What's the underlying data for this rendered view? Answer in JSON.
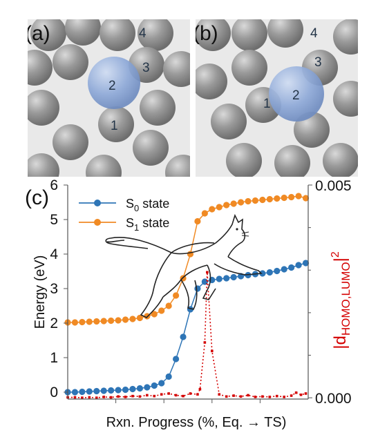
{
  "panels": {
    "a": {
      "label": "(a)",
      "atoms": [
        "1",
        "2",
        "3",
        "4"
      ]
    },
    "b": {
      "label": "(b)",
      "atoms": [
        "1",
        "2",
        "3",
        "4"
      ]
    },
    "c": {
      "label": "(c)"
    }
  },
  "colors": {
    "s0": "#2e75b6",
    "s1": "#f08a24",
    "overlap": "#d40000",
    "adsorbate": "#8ea9d8",
    "metal": "#8a8a8a"
  },
  "chart_data": {
    "type": "line",
    "xlabel": "Rxn. Progress (%, Eq. → TS)",
    "ylabel": "Energy (eV)",
    "y2label": "|d_HOMO,LUMO|^2",
    "y2label_main": "|d",
    "y2label_sub": "HOMO,LUMO",
    "y2label_end": "|",
    "y2label_sup": "2",
    "ylim": [
      -0.2,
      6
    ],
    "y2lim": [
      -3e-05,
      0.005
    ],
    "yticks": [
      "0",
      "1",
      "2",
      "3",
      "4",
      "5",
      "6"
    ],
    "y2ticks": [
      "0.000",
      "0.005"
    ],
    "xlim": [
      0,
      100
    ],
    "legend": {
      "placement": "top-left"
    },
    "series": [
      {
        "name": "S0 state",
        "name_main": "S",
        "name_sub": "0",
        "name_rest": " state",
        "axis": "left",
        "x": [
          0,
          3,
          6,
          9,
          12,
          15,
          18,
          21,
          24,
          27,
          30,
          33,
          36,
          39,
          42,
          45,
          48,
          51,
          54,
          57,
          60,
          63,
          66,
          69,
          72,
          75,
          78,
          81,
          84,
          87,
          90,
          93,
          96,
          99
        ],
        "values": [
          0.0,
          0.0,
          0.01,
          0.02,
          0.03,
          0.04,
          0.05,
          0.06,
          0.07,
          0.09,
          0.11,
          0.14,
          0.19,
          0.26,
          0.45,
          0.96,
          1.6,
          2.4,
          3.0,
          3.2,
          3.25,
          3.28,
          3.3,
          3.33,
          3.36,
          3.39,
          3.42,
          3.44,
          3.47,
          3.51,
          3.56,
          3.61,
          3.68,
          3.74
        ]
      },
      {
        "name": "S1 state",
        "name_main": "S",
        "name_sub": "1",
        "name_rest": " state",
        "axis": "left",
        "x": [
          0,
          3,
          6,
          9,
          12,
          15,
          18,
          21,
          24,
          27,
          30,
          33,
          36,
          39,
          42,
          45,
          48,
          51,
          54,
          57,
          60,
          63,
          66,
          69,
          72,
          75,
          78,
          81,
          84,
          87,
          90,
          93,
          96,
          99
        ],
        "values": [
          2.02,
          2.02,
          2.03,
          2.04,
          2.05,
          2.06,
          2.07,
          2.08,
          2.1,
          2.12,
          2.15,
          2.2,
          2.26,
          2.36,
          2.5,
          2.8,
          3.3,
          4.0,
          4.95,
          5.18,
          5.3,
          5.36,
          5.42,
          5.46,
          5.5,
          5.53,
          5.55,
          5.57,
          5.59,
          5.61,
          5.63,
          5.65,
          5.68,
          5.62
        ]
      },
      {
        "name": "|d_HOMO,LUMO|^2",
        "axis": "right",
        "x": [
          0,
          3,
          6,
          9,
          12,
          15,
          18,
          21,
          24,
          27,
          30,
          33,
          36,
          39,
          42,
          45,
          48,
          51,
          54,
          55,
          57,
          58,
          60,
          63,
          66,
          69,
          72,
          75,
          78,
          81,
          84,
          87,
          90,
          93,
          95,
          97,
          99
        ],
        "values": [
          1e-05,
          1e-05,
          0.0,
          1e-05,
          0.0,
          2e-05,
          1e-05,
          3e-05,
          2e-05,
          4e-05,
          3e-05,
          6e-05,
          4e-05,
          8e-05,
          0.0001,
          6e-05,
          4e-05,
          0.0001,
          8e-05,
          0.0002,
          0.0013,
          0.00295,
          0.0011,
          8e-05,
          3e-05,
          5e-05,
          3e-05,
          6e-05,
          2e-05,
          3e-05,
          2e-05,
          4e-05,
          2e-05,
          5e-05,
          0.00012,
          7e-05,
          0.0001
        ]
      }
    ]
  }
}
